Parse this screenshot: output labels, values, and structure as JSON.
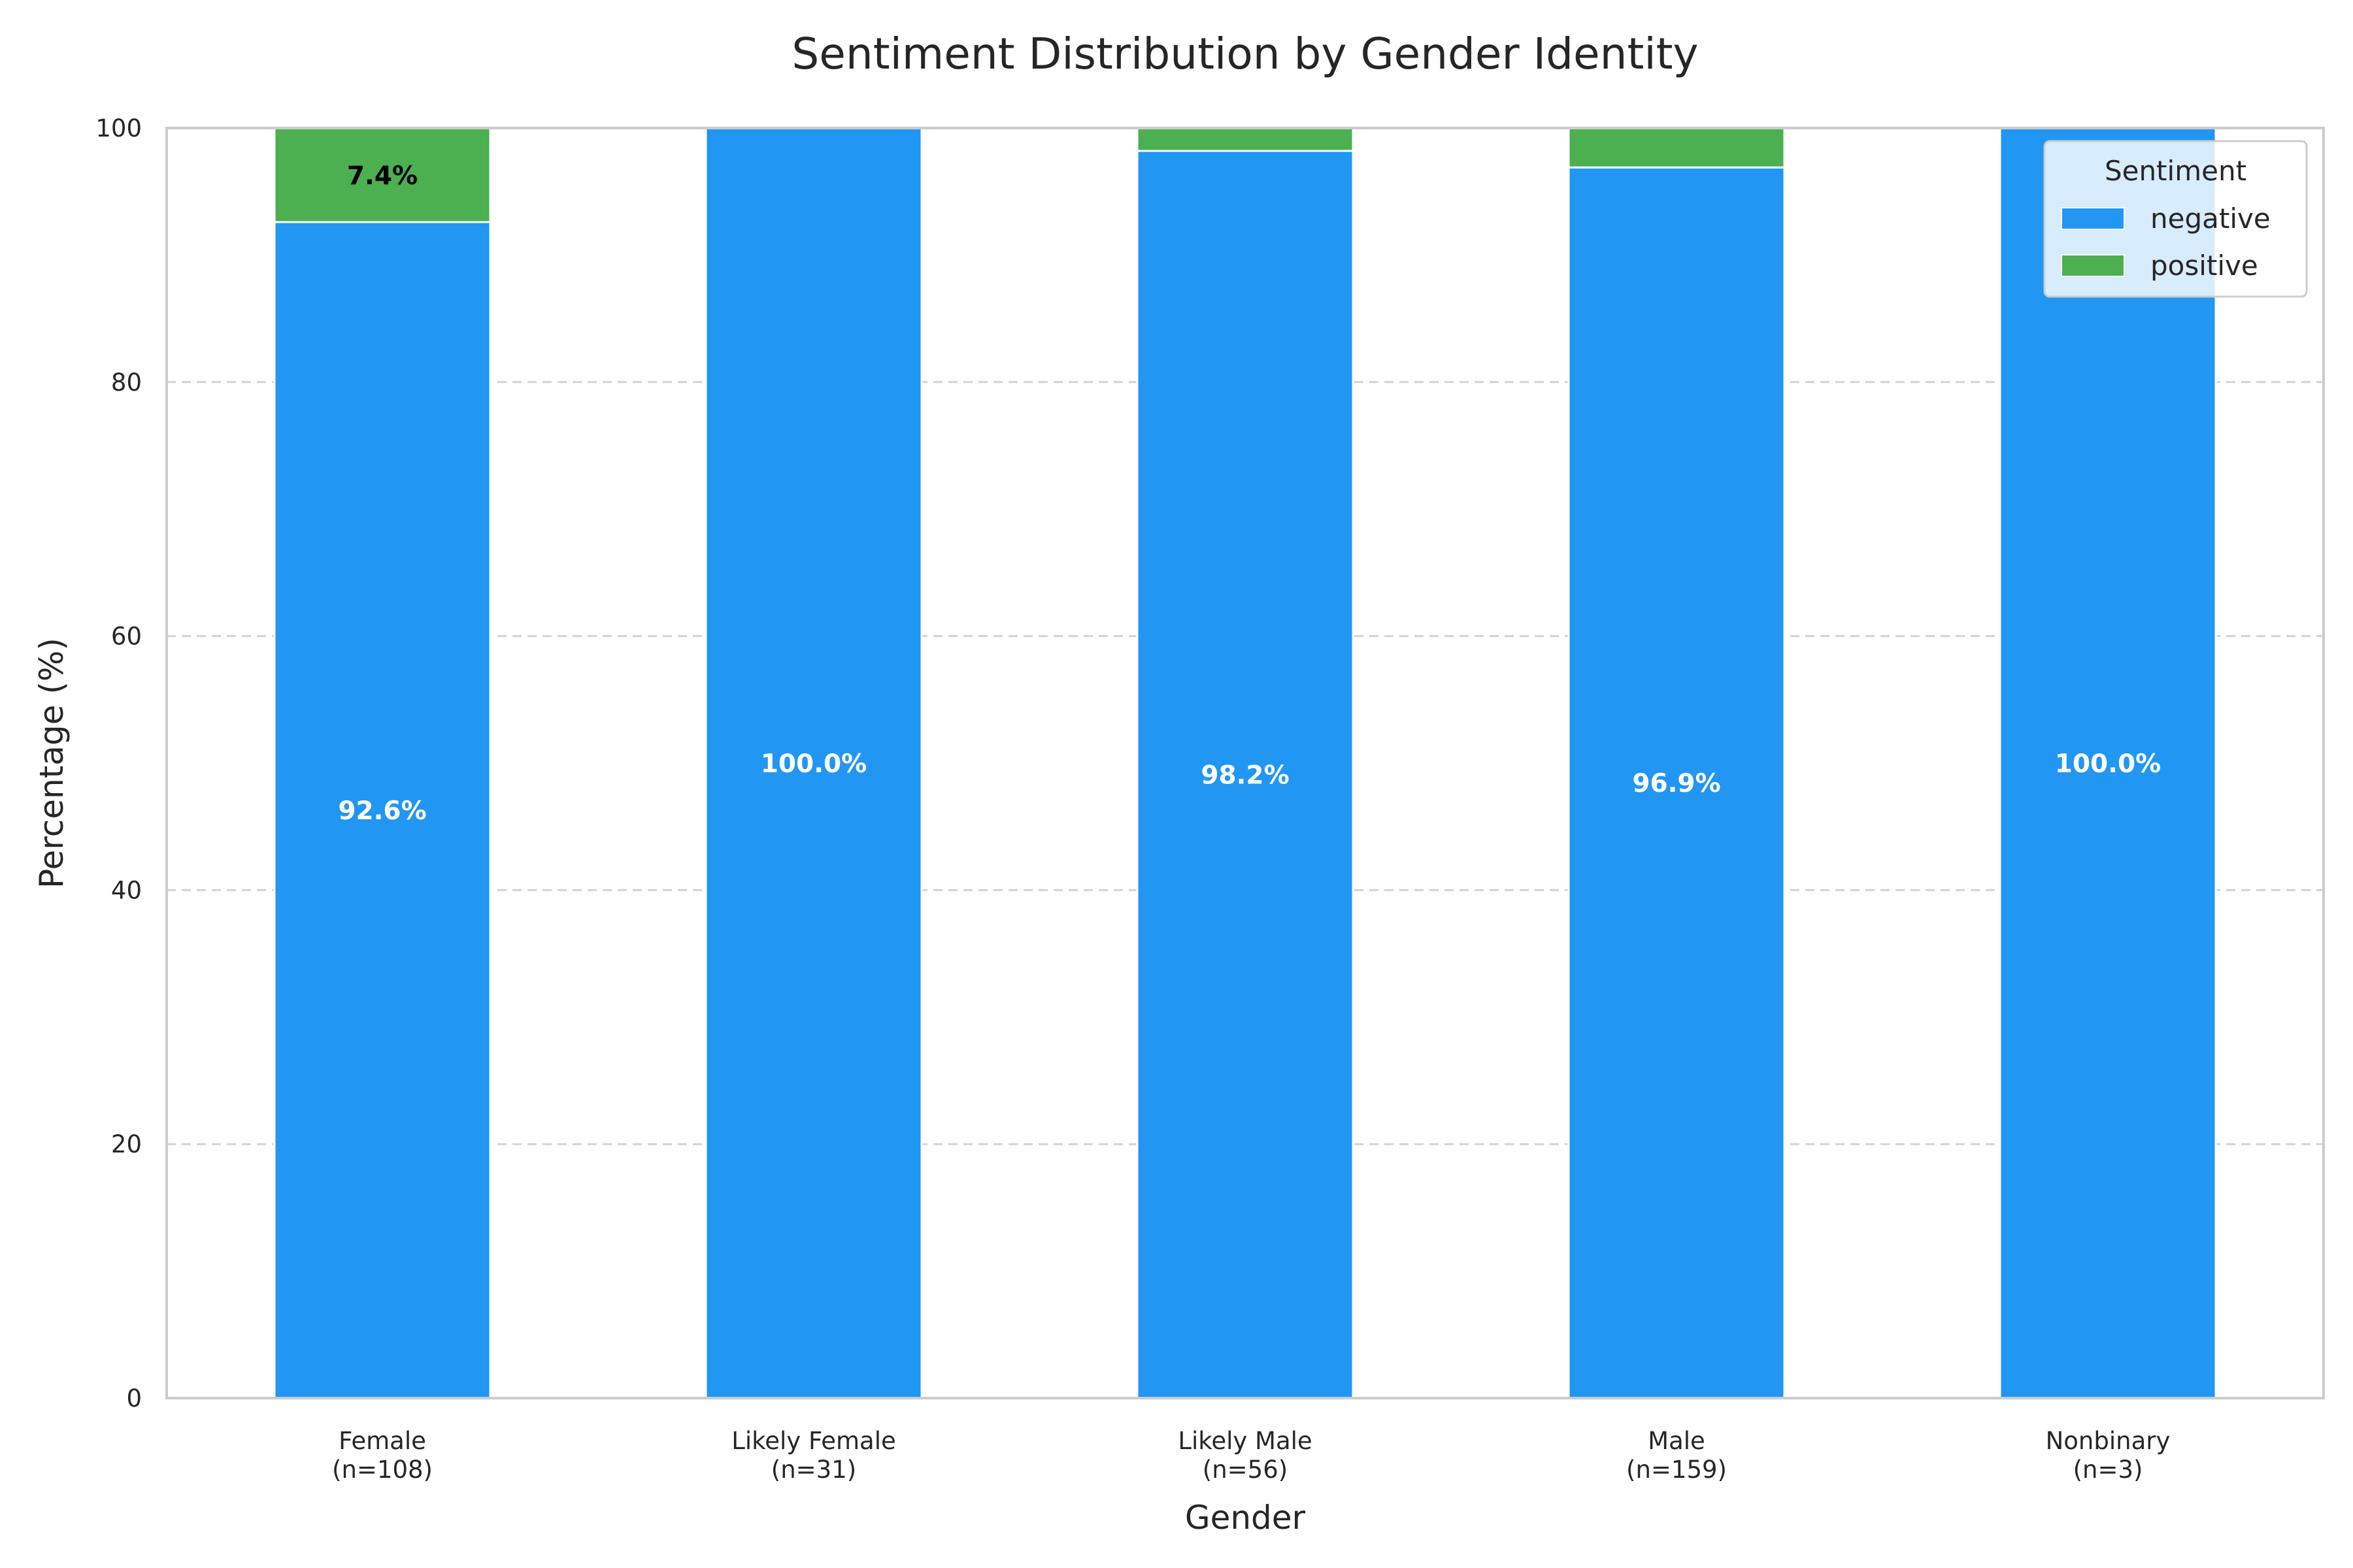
{
  "chart_data": {
    "type": "bar",
    "stacked": true,
    "title": "Sentiment Distribution by Gender Identity",
    "xlabel": "Gender",
    "ylabel": "Percentage (%)",
    "ylim": [
      0,
      100
    ],
    "yticks": [
      0,
      20,
      40,
      60,
      80,
      100
    ],
    "grid": "y-dashed",
    "categories": [
      [
        "Female",
        "(n=108)"
      ],
      [
        "Likely Female",
        "(n=31)"
      ],
      [
        "Likely Male",
        "(n=56)"
      ],
      [
        "Male",
        "(n=159)"
      ],
      [
        "Nonbinary",
        "(n=3)"
      ]
    ],
    "series": [
      {
        "name": "negative",
        "color": "#2196f3",
        "values": [
          92.6,
          100.0,
          98.2,
          96.9,
          100.0
        ],
        "data_labels": [
          "92.6%",
          "100.0%",
          "98.2%",
          "96.9%",
          "100.0%"
        ],
        "label_color": "#ffffff"
      },
      {
        "name": "positive",
        "color": "#4caf50",
        "values": [
          7.4,
          0.0,
          1.8,
          3.1,
          0.0
        ],
        "data_labels": [
          "7.4%",
          "",
          "",
          "",
          ""
        ],
        "label_color": "#000000"
      }
    ],
    "legend": {
      "title": "Sentiment",
      "placement": "top-right"
    }
  }
}
